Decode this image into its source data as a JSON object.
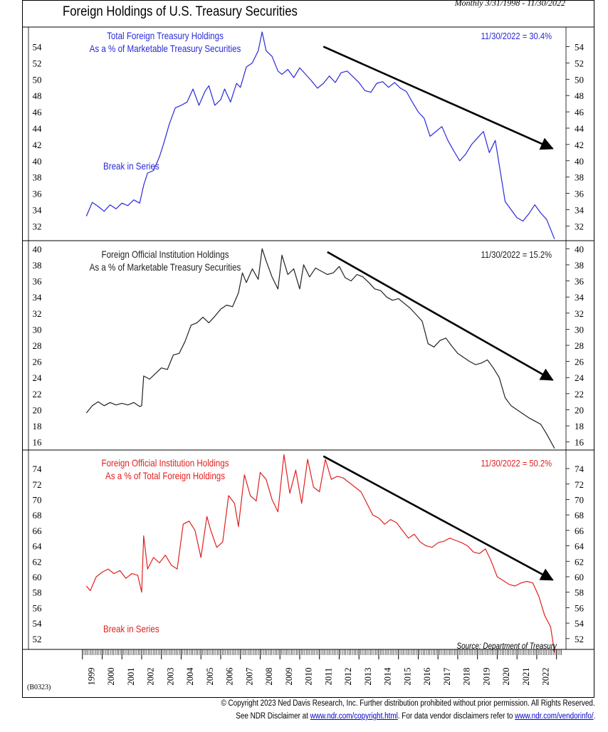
{
  "header": {
    "title": "Foreign Holdings of U.S. Treasury Securities",
    "range": "Monthly 3/31/1998 - 11/30/2022"
  },
  "chart_code": "(B0323)",
  "footer": {
    "copyright": "© Copyright 2023 Ned Davis Research, Inc. Further distribution prohibited without prior permission. All Rights Reserved.",
    "disclaimer_prefix": "See NDR Disclaimer at ",
    "disclaimer_link1": "www.ndr.com/copyright.html",
    "disclaimer_mid": ". For data vendor disclaimers refer to ",
    "disclaimer_link2": "www.ndr.com/vendorinfo/",
    "disclaimer_suffix": "."
  },
  "colors": {
    "panel1": "#2a2ad8",
    "panel2": "#222222",
    "panel3": "#e02020",
    "arrow": "#000000"
  },
  "chart_data": [
    {
      "type": "line",
      "label_lines": [
        "Total Foreign Treasury Holdings",
        "As a % of Marketable Treasury Securities"
      ],
      "latest": "11/30/2022 = 30.4%",
      "annotations": [
        "Break in Series"
      ],
      "ylim": [
        30.2,
        56.4
      ],
      "yticks": [
        32,
        34,
        36,
        38,
        40,
        42,
        44,
        46,
        48,
        50,
        52,
        54
      ],
      "trend_arrow": {
        "from": [
          2011.2,
          54.0
        ],
        "to": [
          2022.8,
          41.5
        ]
      },
      "series": [
        {
          "x": [
            1999.2,
            1999.5,
            1999.8,
            2000.1,
            2000.4,
            2000.7,
            2001.0,
            2001.3,
            2001.6,
            2001.9,
            2002.1,
            2002.3,
            2002.6,
            2002.9,
            2003.1,
            2003.4,
            2003.7,
            2004.0,
            2004.3,
            2004.6,
            2004.9,
            2005.2,
            2005.4,
            2005.7,
            2006.0,
            2006.2,
            2006.5,
            2006.8,
            2007.0,
            2007.3,
            2007.6,
            2007.9,
            2008.1,
            2008.3,
            2008.6,
            2008.9,
            2009.1,
            2009.4,
            2009.7,
            2010.0,
            2010.3,
            2010.6,
            2010.9,
            2011.2,
            2011.5,
            2011.8,
            2012.1,
            2012.4,
            2012.7,
            2013.0,
            2013.3,
            2013.6,
            2013.9,
            2014.2,
            2014.5,
            2014.8,
            2015.1,
            2015.4,
            2015.7,
            2016.0,
            2016.3,
            2016.6,
            2016.9,
            2017.2,
            2017.5,
            2017.8,
            2018.1,
            2018.4,
            2018.7,
            2019.0,
            2019.3,
            2019.6,
            2019.9,
            2020.2,
            2020.4,
            2020.7,
            2021.0,
            2021.3,
            2021.6,
            2021.9,
            2022.2,
            2022.5,
            2022.9
          ],
          "y": [
            33.2,
            34.9,
            34.4,
            33.8,
            34.6,
            34.1,
            34.8,
            34.5,
            35.2,
            34.8,
            37.0,
            38.5,
            38.8,
            40.5,
            42.0,
            44.5,
            46.5,
            46.8,
            47.2,
            48.8,
            46.8,
            48.5,
            49.2,
            46.8,
            47.5,
            48.8,
            47.2,
            49.5,
            49.0,
            51.5,
            52.0,
            53.5,
            55.8,
            53.5,
            52.8,
            51.0,
            50.6,
            51.2,
            50.2,
            51.4,
            50.6,
            49.8,
            48.9,
            49.5,
            50.4,
            49.6,
            50.8,
            51.0,
            50.3,
            49.6,
            48.6,
            48.4,
            49.5,
            49.7,
            49.0,
            49.6,
            48.9,
            48.5,
            47.2,
            46.0,
            45.2,
            43.0,
            43.6,
            44.2,
            42.5,
            41.2,
            40.0,
            40.8,
            42.0,
            42.8,
            43.6,
            41.0,
            42.5,
            38.0,
            35.0,
            34.0,
            33.0,
            32.6,
            33.5,
            34.6,
            33.6,
            32.8,
            30.4
          ]
        }
      ]
    },
    {
      "type": "line",
      "label_lines": [
        "Foreign Official Institution Holdings",
        "As a % of Marketable Treasury Securities"
      ],
      "latest": "11/30/2022 = 15.2%",
      "annotations": [],
      "ylim": [
        15.0,
        41.0
      ],
      "yticks": [
        16,
        18,
        20,
        22,
        24,
        26,
        28,
        30,
        32,
        34,
        36,
        38,
        40
      ],
      "trend_arrow": {
        "from": [
          2011.4,
          39.6
        ],
        "to": [
          2022.8,
          23.7
        ]
      },
      "series": [
        {
          "x": [
            1999.2,
            1999.5,
            1999.8,
            2000.1,
            2000.4,
            2000.7,
            2001.0,
            2001.3,
            2001.6,
            2001.9,
            2002.0,
            2002.1,
            2002.4,
            2002.7,
            2003.0,
            2003.3,
            2003.6,
            2003.9,
            2004.2,
            2004.5,
            2004.8,
            2005.1,
            2005.4,
            2005.7,
            2006.0,
            2006.3,
            2006.6,
            2006.9,
            2007.1,
            2007.3,
            2007.6,
            2007.9,
            2008.1,
            2008.3,
            2008.6,
            2008.9,
            2009.1,
            2009.4,
            2009.7,
            2010.0,
            2010.2,
            2010.5,
            2010.8,
            2011.1,
            2011.4,
            2011.7,
            2012.0,
            2012.3,
            2012.6,
            2012.9,
            2013.2,
            2013.5,
            2013.8,
            2014.1,
            2014.4,
            2014.7,
            2015.0,
            2015.3,
            2015.6,
            2015.9,
            2016.2,
            2016.5,
            2016.8,
            2017.1,
            2017.4,
            2017.7,
            2018.0,
            2018.3,
            2018.6,
            2018.9,
            2019.2,
            2019.5,
            2019.8,
            2020.1,
            2020.4,
            2020.7,
            2021.0,
            2021.3,
            2021.6,
            2021.9,
            2022.2,
            2022.5,
            2022.9
          ],
          "y": [
            19.6,
            20.5,
            21.0,
            20.5,
            20.9,
            20.6,
            20.8,
            20.6,
            20.9,
            20.4,
            20.5,
            24.2,
            23.8,
            24.5,
            25.2,
            25.0,
            26.8,
            27.0,
            28.5,
            30.5,
            30.8,
            31.5,
            30.8,
            31.6,
            32.5,
            33.0,
            32.8,
            34.5,
            37.0,
            35.8,
            37.5,
            36.2,
            40.0,
            38.5,
            36.5,
            35.0,
            39.2,
            36.8,
            37.5,
            35.0,
            38.0,
            36.5,
            37.6,
            37.2,
            36.8,
            37.0,
            37.8,
            36.4,
            36.0,
            36.8,
            36.5,
            35.8,
            35.0,
            34.8,
            34.0,
            33.6,
            33.8,
            33.2,
            32.6,
            31.8,
            31.0,
            28.2,
            27.8,
            28.6,
            28.9,
            27.9,
            27.0,
            26.5,
            26.0,
            25.6,
            25.8,
            26.2,
            25.2,
            24.0,
            21.5,
            20.5,
            20.0,
            19.5,
            19.0,
            18.6,
            18.2,
            17.0,
            15.2
          ]
        }
      ]
    },
    {
      "type": "line",
      "label_lines": [
        "Foreign Official Institution Holdings",
        "As a % of Total Foreign Holdings"
      ],
      "latest": "11/30/2022 = 50.2%",
      "annotations": [
        "Break in Series"
      ],
      "source": "Source: Department of Treasury",
      "ylim": [
        50.6,
        76.4
      ],
      "yticks": [
        52,
        54,
        56,
        58,
        60,
        62,
        64,
        66,
        68,
        70,
        72,
        74
      ],
      "trend_arrow": {
        "from": [
          2011.2,
          75.6
        ],
        "to": [
          2022.8,
          59.6
        ]
      },
      "series": [
        {
          "x": [
            1999.2,
            1999.4,
            1999.7,
            2000.0,
            2000.3,
            2000.6,
            2000.9,
            2001.2,
            2001.5,
            2001.8,
            2002.0,
            2002.1,
            2002.3,
            2002.6,
            2002.9,
            2003.2,
            2003.5,
            2003.8,
            2004.1,
            2004.4,
            2004.7,
            2005.0,
            2005.3,
            2005.5,
            2005.8,
            2006.1,
            2006.4,
            2006.7,
            2006.9,
            2007.2,
            2007.5,
            2007.8,
            2008.0,
            2008.3,
            2008.6,
            2008.9,
            2009.2,
            2009.5,
            2009.8,
            2010.1,
            2010.4,
            2010.7,
            2011.0,
            2011.3,
            2011.6,
            2011.9,
            2012.2,
            2012.5,
            2012.8,
            2013.1,
            2013.4,
            2013.7,
            2014.0,
            2014.3,
            2014.6,
            2014.9,
            2015.2,
            2015.5,
            2015.8,
            2016.1,
            2016.4,
            2016.7,
            2017.0,
            2017.3,
            2017.6,
            2017.9,
            2018.2,
            2018.5,
            2018.8,
            2019.1,
            2019.4,
            2019.7,
            2020.0,
            2020.3,
            2020.6,
            2020.9,
            2021.2,
            2021.5,
            2021.8,
            2022.1,
            2022.4,
            2022.7,
            2022.9
          ],
          "y": [
            58.8,
            58.2,
            60.0,
            60.6,
            61.0,
            60.4,
            60.8,
            59.8,
            60.4,
            60.2,
            58.0,
            65.3,
            61.0,
            62.5,
            61.8,
            62.8,
            61.5,
            61.0,
            66.8,
            67.2,
            66.0,
            62.5,
            67.8,
            66.0,
            63.8,
            64.5,
            70.5,
            69.5,
            66.5,
            73.2,
            70.5,
            69.8,
            73.5,
            72.6,
            70.0,
            68.4,
            75.8,
            70.8,
            73.8,
            69.5,
            75.2,
            71.6,
            71.0,
            75.2,
            72.6,
            73.0,
            72.8,
            72.2,
            71.6,
            71.0,
            69.5,
            68.0,
            67.6,
            66.8,
            67.4,
            67.0,
            66.0,
            65.0,
            65.5,
            64.5,
            64.0,
            63.8,
            64.4,
            64.6,
            65.0,
            64.7,
            64.4,
            64.0,
            63.2,
            63.0,
            63.6,
            62.0,
            60.0,
            59.5,
            59.0,
            58.8,
            59.2,
            59.4,
            59.2,
            57.5,
            55.0,
            53.5,
            50.2
          ]
        }
      ]
    }
  ],
  "x_axis": {
    "years": [
      "1999",
      "2000",
      "2001",
      "2002",
      "2003",
      "2004",
      "2005",
      "2006",
      "2007",
      "2008",
      "2009",
      "2010",
      "2011",
      "2012",
      "2013",
      "2014",
      "2015",
      "2016",
      "2017",
      "2018",
      "2019",
      "2020",
      "2021",
      "2022"
    ],
    "domain": [
      1998.0,
      2023.3
    ]
  }
}
